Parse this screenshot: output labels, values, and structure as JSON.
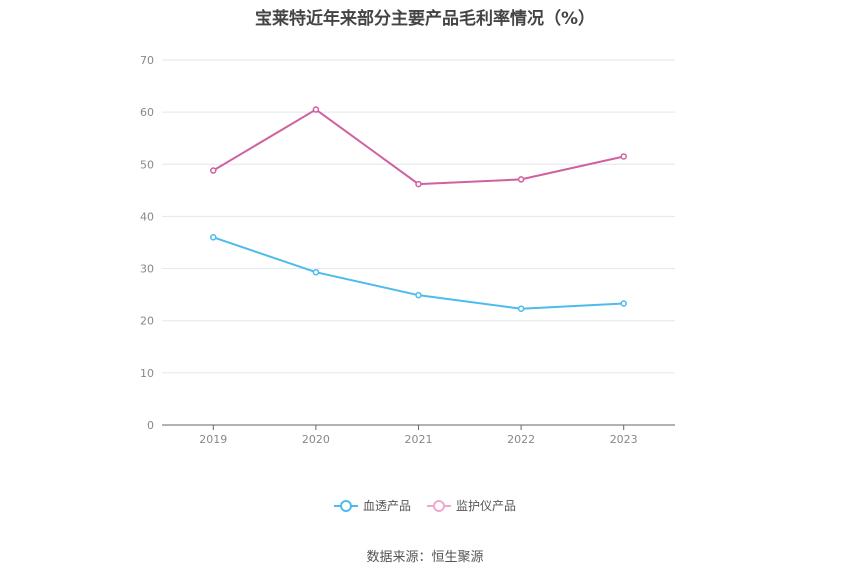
{
  "chart_data": {
    "type": "line",
    "title": "宝莱特近年来部分主要产品毛利率情况（%）",
    "categories": [
      "2019",
      "2020",
      "2021",
      "2022",
      "2023"
    ],
    "series": [
      {
        "name": "血透产品",
        "color": "#4dbbec",
        "values": [
          36.0,
          29.3,
          24.9,
          22.3,
          23.3
        ]
      },
      {
        "name": "监护仪产品",
        "color": "#d0609e",
        "values": [
          48.8,
          60.5,
          46.2,
          47.1,
          51.5
        ]
      }
    ],
    "ylim": [
      0,
      70
    ],
    "yticks": [
      0,
      10,
      20,
      30,
      40,
      50,
      60,
      70
    ],
    "grid": true,
    "legend_position": "bottom"
  },
  "source_text": "数据来源：恒生聚源"
}
